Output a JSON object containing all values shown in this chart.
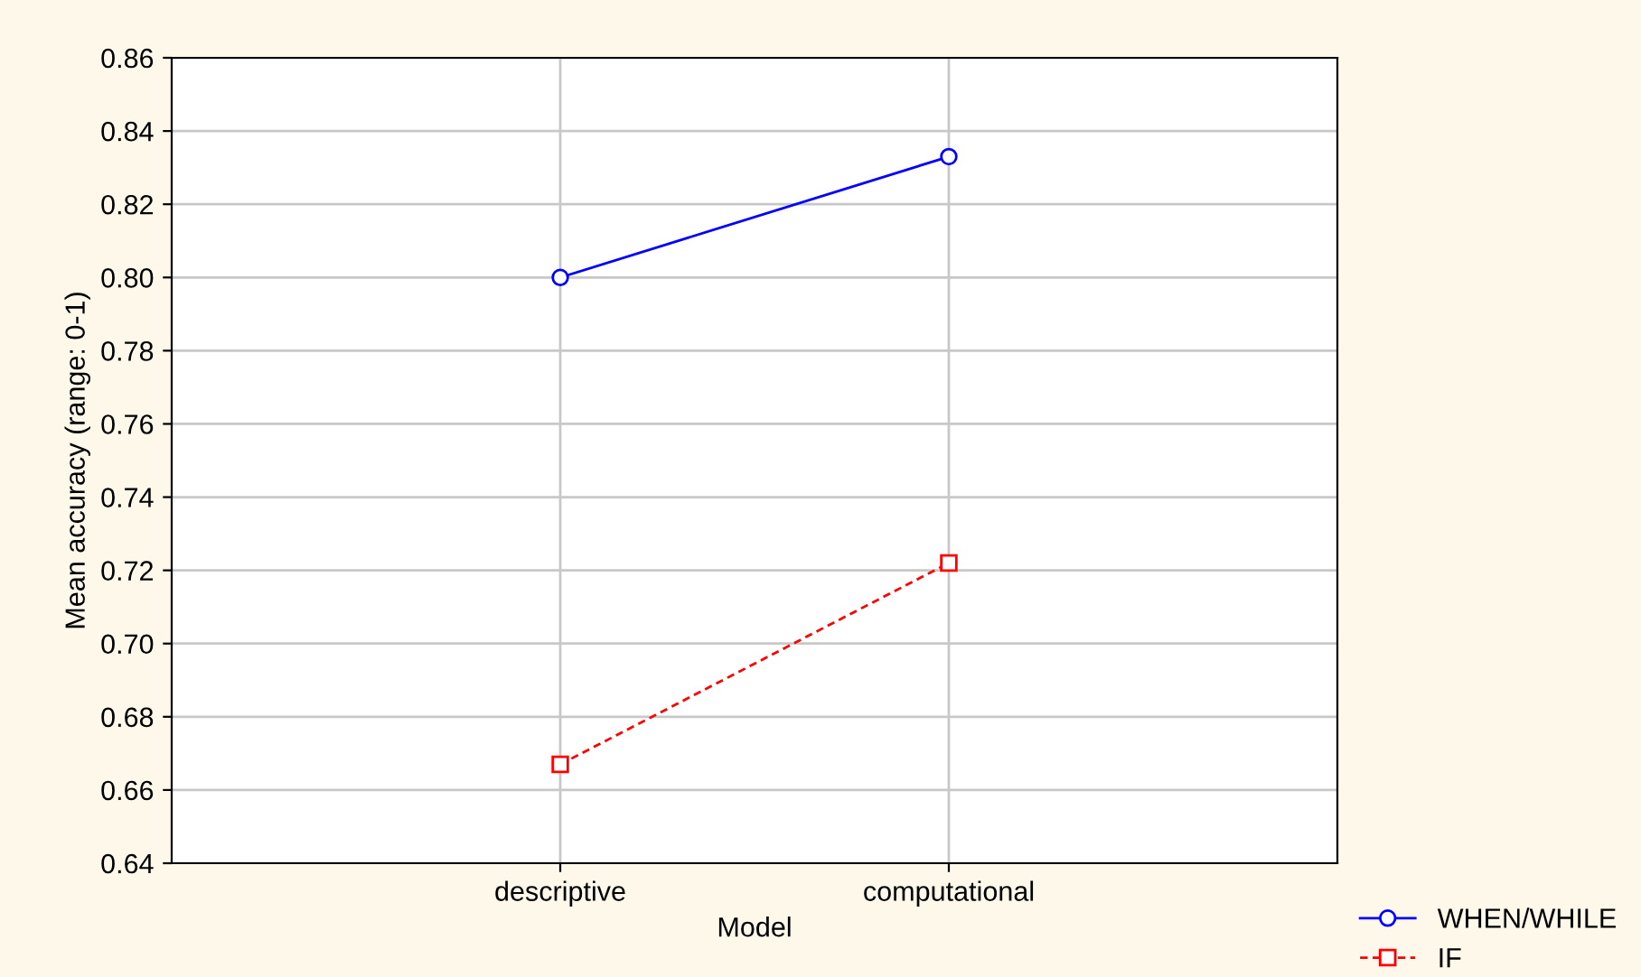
{
  "chart_data": {
    "type": "line",
    "xlabel": "Model",
    "ylabel": "Mean accuracy (range: 0-1)",
    "categories": [
      "descriptive",
      "computational"
    ],
    "series": [
      {
        "name": "WHEN/WHILE",
        "color": "#0000ff",
        "values": [
          0.8,
          0.833
        ],
        "marker": "circle",
        "line_style": "solid"
      },
      {
        "name": "IF",
        "color": "#ff0000",
        "values": [
          0.667,
          0.722
        ],
        "marker": "square",
        "line_style": "dashed"
      }
    ],
    "ylim": [
      0.64,
      0.86
    ],
    "yticks": [
      {
        "value": 0.64,
        "label": "0.64"
      },
      {
        "value": 0.66,
        "label": "0.66"
      },
      {
        "value": 0.68,
        "label": "0.68"
      },
      {
        "value": 0.7,
        "label": "0.70"
      },
      {
        "value": 0.72,
        "label": "0.72"
      },
      {
        "value": 0.74,
        "label": "0.74"
      },
      {
        "value": 0.76,
        "label": "0.76"
      },
      {
        "value": 0.78,
        "label": "0.78"
      },
      {
        "value": 0.8,
        "label": "0.80"
      },
      {
        "value": 0.82,
        "label": "0.82"
      },
      {
        "value": 0.84,
        "label": "0.84"
      },
      {
        "value": 0.86,
        "label": "0.86"
      }
    ],
    "grid": true,
    "legend": "bottom right"
  }
}
